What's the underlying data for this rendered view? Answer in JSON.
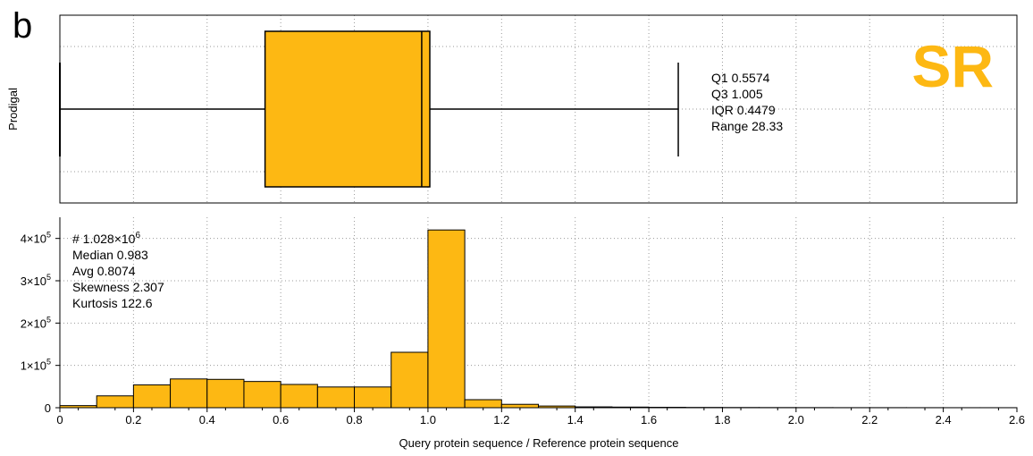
{
  "panel_letter": "b",
  "watermark": "SR",
  "colors": {
    "bar_fill": "#FDB813",
    "bar_stroke": "#000000",
    "grid": "#9a9a9a",
    "watermark": "#FDB813"
  },
  "chart_data": [
    {
      "type": "box",
      "ylabel": "Prodigal",
      "box": {
        "whisker_low": 0,
        "q1": 0.5574,
        "median": 0.983,
        "q3": 1.005,
        "whisker_high": 1.68
      },
      "xlim": [
        0,
        2.6
      ],
      "grid": true,
      "stats": [
        "Q1 0.5574",
        "Q3 1.005",
        "IQR 0.4479",
        "Range 28.33"
      ]
    },
    {
      "type": "bar",
      "xlabel": "Query protein sequence / Reference protein sequence",
      "xlim": [
        0,
        2.6
      ],
      "ylim": [
        0,
        450000
      ],
      "grid": true,
      "bin_width": 0.1,
      "bin_starts": [
        0,
        0.1,
        0.2,
        0.3,
        0.4,
        0.5,
        0.6,
        0.7,
        0.8,
        0.9,
        1.0,
        1.1,
        1.2,
        1.3,
        1.4,
        1.5,
        1.6,
        1.7,
        1.8,
        1.9,
        2.0,
        2.1,
        2.2,
        2.3,
        2.4,
        2.5
      ],
      "values": [
        5000,
        28000,
        54000,
        68000,
        67000,
        62000,
        55000,
        49000,
        49000,
        131000,
        420000,
        19000,
        8000,
        4000,
        2000,
        1500,
        1000,
        700,
        500,
        400,
        300,
        200,
        200,
        150,
        100,
        100
      ],
      "x_ticks": [
        "0",
        "0.2",
        "0.4",
        "0.6",
        "0.8",
        "1.0",
        "1.2",
        "1.4",
        "1.6",
        "1.8",
        "2.0",
        "2.2",
        "2.4",
        "2.6"
      ],
      "y_ticks": [
        {
          "value": 0,
          "base": "0",
          "exp": ""
        },
        {
          "value": 100000,
          "base": "1×10",
          "exp": "5"
        },
        {
          "value": 200000,
          "base": "2×10",
          "exp": "5"
        },
        {
          "value": 300000,
          "base": "3×10",
          "exp": "5"
        },
        {
          "value": 400000,
          "base": "4×10",
          "exp": "5"
        }
      ],
      "stats": [
        {
          "base": "# 1.028×10",
          "exp": "6"
        },
        {
          "base": "Median 0.983",
          "exp": ""
        },
        {
          "base": "Avg 0.8074",
          "exp": ""
        },
        {
          "base": "Skewness 2.307",
          "exp": ""
        },
        {
          "base": "Kurtosis 122.6",
          "exp": ""
        }
      ]
    }
  ]
}
